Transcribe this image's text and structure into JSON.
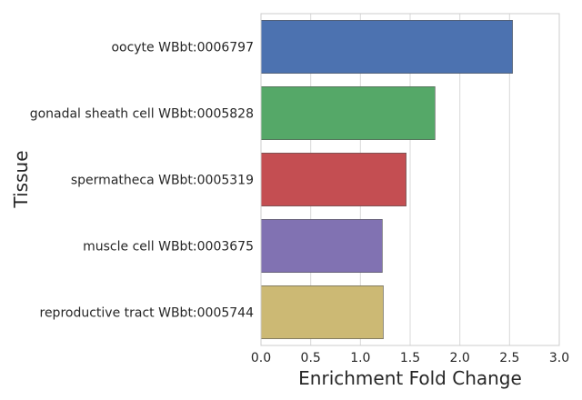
{
  "chart_data": {
    "type": "bar",
    "orientation": "horizontal",
    "title": "",
    "xlabel": "Enrichment Fold Change",
    "ylabel": "Tissue",
    "xlim": [
      0,
      3.0
    ],
    "xticks": [
      "0.0",
      "0.5",
      "1.0",
      "1.5",
      "2.0",
      "2.5",
      "3.0"
    ],
    "grid": "vertical",
    "categories": [
      "oocyte WBbt:0006797",
      "gonadal sheath cell WBbt:0005828",
      "spermatheca WBbt:0005319",
      "muscle cell WBbt:0003675",
      "reproductive tract WBbt:0005744"
    ],
    "values": [
      2.53,
      1.75,
      1.46,
      1.22,
      1.23
    ],
    "colors": [
      "#4c72b0",
      "#55a868",
      "#c44e52",
      "#8172b2",
      "#ccb974"
    ]
  }
}
